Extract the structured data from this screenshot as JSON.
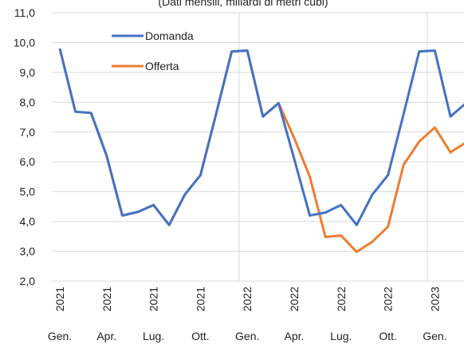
{
  "chart_data": {
    "type": "line",
    "subtitle": "(Dati mensili, miliardi di metri cubi)",
    "categories": [
      [
        "2021",
        "Gen."
      ],
      null,
      null,
      [
        "2021",
        "Apr."
      ],
      null,
      null,
      [
        "2021",
        "Lug."
      ],
      null,
      null,
      [
        "2021",
        "Ott."
      ],
      null,
      null,
      [
        "2022",
        "Gen."
      ],
      null,
      null,
      [
        "2022",
        "Apr."
      ],
      null,
      null,
      [
        "2022",
        "Lug."
      ],
      null,
      null,
      [
        "2022",
        "Ott."
      ],
      null,
      null,
      [
        "2023",
        "Gen."
      ],
      null,
      null
    ],
    "series": [
      {
        "name": "Domanda",
        "color": "#4472c4",
        "values": [
          9.8,
          7.68,
          7.64,
          6.2,
          4.2,
          4.32,
          4.55,
          3.88,
          4.9,
          5.55,
          7.6,
          9.7,
          9.73,
          7.52,
          7.97,
          6.1,
          4.2,
          4.3,
          4.55,
          3.88,
          4.9,
          5.55,
          7.6,
          9.7,
          9.73,
          7.52,
          7.97
        ]
      },
      {
        "name": "Offerta",
        "color": "#ed7d31",
        "values": [
          9.8,
          7.68,
          7.64,
          6.2,
          4.2,
          4.32,
          4.55,
          3.88,
          4.9,
          5.55,
          7.6,
          9.7,
          9.73,
          7.52,
          7.97,
          6.8,
          5.5,
          3.48,
          3.53,
          2.98,
          3.32,
          3.82,
          5.9,
          6.68,
          7.15,
          6.32,
          6.65
        ]
      }
    ],
    "ylim": [
      2,
      11
    ],
    "yticks": [
      {
        "value": 2,
        "label": "2,0"
      },
      {
        "value": 3,
        "label": "3,0"
      },
      {
        "value": 4,
        "label": "4,0"
      },
      {
        "value": 5,
        "label": "5,0"
      },
      {
        "value": 6,
        "label": "6,0"
      },
      {
        "value": 7,
        "label": "7,0"
      },
      {
        "value": 8,
        "label": "8,0"
      },
      {
        "value": 9,
        "label": "9,0"
      },
      {
        "value": 10,
        "label": "10,0"
      },
      {
        "value": 11,
        "label": "11,0"
      }
    ],
    "grid": true
  }
}
